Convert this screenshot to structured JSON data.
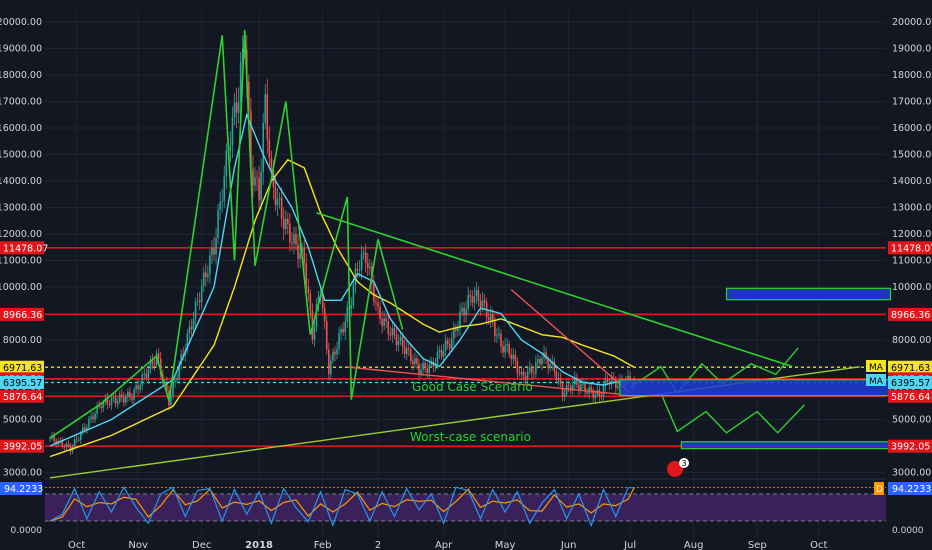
{
  "chart_data": {
    "type": "candlestick",
    "y_axis_ticks": [
      "20000.00",
      "19000.00",
      "18000.00",
      "17000.00",
      "16000.00",
      "15000.00",
      "14000.00",
      "13000.00",
      "12000.00",
      "11000.00",
      "10000.00",
      "9000.00",
      "8000.00",
      "7000.00",
      "6000.00",
      "5000.00",
      "4000.00",
      "3000.00"
    ],
    "y_tick_values": [
      20000,
      19000,
      18000,
      17000,
      16000,
      15000,
      14000,
      13000,
      12000,
      11000,
      10000,
      9000,
      8000,
      7000,
      6000,
      5000,
      4000,
      3000
    ],
    "x_axis_labels": [
      "Oct",
      "Nov",
      "Dec",
      "2018",
      "Feb",
      "2",
      "Apr",
      "May",
      "Jun",
      "Jul",
      "Aug",
      "Sep",
      "Oct"
    ],
    "x_tick_day": [
      13,
      43,
      74,
      102,
      133,
      160,
      192,
      222,
      253,
      283,
      314,
      345,
      375
    ],
    "horizontal_levels": [
      {
        "label": "11478.07",
        "value": 11478.07,
        "color": "#e0161b",
        "style": "solid"
      },
      {
        "label": "8966.36",
        "value": 8966.36,
        "color": "#e0161b",
        "style": "solid"
      },
      {
        "label": "6971.63",
        "value": 6971.63,
        "color": "#f5e71a",
        "style": "dotted"
      },
      {
        "label": "6528.06",
        "value": 6528.06,
        "color": "#ffffff",
        "style": "dotted"
      },
      {
        "label": "6535.59",
        "value": 6535.59,
        "color": "#e0161b",
        "style": "solid"
      },
      {
        "label": "6395.57",
        "value": 6395.57,
        "color": "#4fd6f5",
        "style": "dotted"
      },
      {
        "label": "5876.64",
        "value": 5876.64,
        "color": "#e0161b",
        "style": "solid"
      },
      {
        "label": "3992.05",
        "value": 3992.05,
        "color": "#e0161b",
        "style": "solid"
      }
    ],
    "ma_labels": [
      "MA",
      "MA"
    ],
    "annotations": [
      {
        "text": "Good Case Scenario",
        "color": "#2ed12e"
      },
      {
        "text": "Worst-case scenario",
        "color": "#2ed12e"
      }
    ],
    "badge_count": "3",
    "price_key_days": [
      0,
      10,
      25,
      40,
      52,
      58,
      66,
      74,
      80,
      88,
      92,
      95,
      98,
      102,
      105,
      108,
      114,
      118,
      124,
      128,
      132,
      136,
      142,
      146,
      150,
      154,
      160,
      166,
      172,
      180,
      186,
      190,
      196,
      200,
      206,
      210,
      216,
      220,
      224,
      230,
      236,
      240,
      246,
      250,
      256,
      262,
      268,
      272,
      278,
      283,
      285
    ],
    "price_key_vals": [
      4300,
      3900,
      5600,
      5900,
      7400,
      5700,
      7800,
      10000,
      11500,
      15800,
      17300,
      19500,
      14500,
      13500,
      17000,
      14000,
      12500,
      11800,
      11000,
      8200,
      10000,
      6900,
      8300,
      9200,
      10800,
      11200,
      9000,
      8300,
      7800,
      6900,
      7000,
      7500,
      8000,
      8900,
      9700,
      9500,
      8600,
      7800,
      7600,
      6600,
      6900,
      7400,
      6900,
      6000,
      6400,
      6100,
      5900,
      6500,
      6300,
      6500,
      6300
    ],
    "ma_fast_key_days": [
      0,
      30,
      60,
      80,
      90,
      96,
      104,
      110,
      118,
      126,
      134,
      142,
      150,
      158,
      166,
      174,
      182,
      190,
      200,
      210,
      220,
      230,
      240,
      250,
      260,
      270,
      280
    ],
    "ma_fast_key_vals": [
      4000,
      5000,
      6500,
      10000,
      14500,
      16500,
      15000,
      14000,
      13000,
      11500,
      9500,
      9500,
      10500,
      10200,
      8800,
      8000,
      7300,
      7000,
      8000,
      9200,
      9000,
      8000,
      7500,
      6800,
      6400,
      6300,
      6500
    ],
    "ma_slow_key_days": [
      0,
      30,
      60,
      80,
      90,
      100,
      108,
      116,
      124,
      132,
      140,
      150,
      158,
      166,
      174,
      182,
      190,
      200,
      210,
      220,
      230,
      240,
      250,
      260,
      275,
      285
    ],
    "ma_slow_key_vals": [
      3600,
      4400,
      5500,
      7800,
      10000,
      12500,
      14000,
      14800,
      14500,
      12800,
      11500,
      10200,
      9700,
      9400,
      9000,
      8600,
      8300,
      8500,
      8600,
      8800,
      8500,
      8200,
      8100,
      7800,
      7400,
      6971.63
    ],
    "stoch_range": [
      0,
      100
    ],
    "stoch_tick_labels": [
      "0.0000",
      "94.2233"
    ],
    "stoch_current": "94.2233",
    "stoch_k_key_days": [
      0,
      6,
      12,
      18,
      24,
      30,
      36,
      42,
      48,
      54,
      60,
      66,
      72,
      78,
      84,
      90,
      96,
      102,
      108,
      114,
      120,
      126,
      132,
      138,
      144,
      150,
      156,
      162,
      168,
      174,
      180,
      186,
      192,
      198,
      204,
      210,
      216,
      222,
      228,
      234,
      240,
      246,
      252,
      258,
      264,
      270,
      276,
      282,
      285
    ],
    "stoch_k_key_vals": [
      20,
      35,
      92,
      25,
      85,
      40,
      95,
      50,
      15,
      80,
      95,
      30,
      88,
      92,
      20,
      90,
      35,
      85,
      15,
      92,
      50,
      18,
      85,
      10,
      90,
      80,
      20,
      85,
      30,
      92,
      45,
      80,
      15,
      95,
      88,
      25,
      90,
      40,
      85,
      15,
      60,
      90,
      25,
      80,
      10,
      90,
      30,
      94,
      94
    ]
  },
  "ui": {
    "last_price_label": "94.2233",
    "d_marker": "D"
  }
}
